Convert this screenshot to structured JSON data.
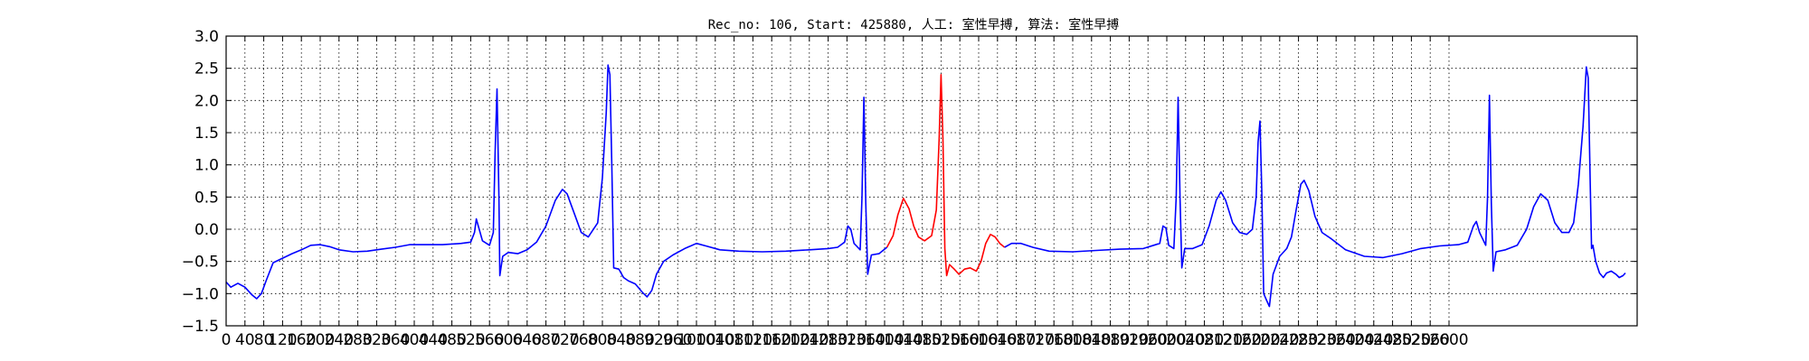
{
  "chart_data": {
    "type": "line",
    "title": "Rec_no: 106, Start: 425880, 人工: 室性早搏, 算法: 室性早搏",
    "xlabel": "",
    "ylabel": "",
    "xlim": [
      0,
      3000
    ],
    "ylim": [
      -1.5,
      3.0
    ],
    "grid": true,
    "x_ticks": [
      0,
      40,
      80,
      120,
      160,
      200,
      240,
      280,
      320,
      360,
      400,
      440,
      480,
      520,
      560,
      600,
      640,
      680,
      720,
      760,
      800,
      840,
      880,
      920,
      960,
      1000,
      1040,
      1080,
      1120,
      1160,
      1200,
      1240,
      1280,
      1320,
      1360,
      1400,
      1440,
      1480,
      1520,
      1560,
      1600,
      1640,
      1680,
      1720,
      1760,
      1800,
      1840,
      1880,
      1920,
      1960,
      2000,
      2040,
      2080,
      2120,
      2160,
      2200,
      2240,
      2280,
      2320,
      2360,
      2400,
      2440,
      2480,
      2520,
      2560,
      2600
    ],
    "y_ticks": [
      3.0,
      2.5,
      2.0,
      1.5,
      1.0,
      0.5,
      0.0,
      -0.5,
      -1.0,
      -1.5
    ],
    "y_tick_labels": [
      "3.0",
      "2.5",
      "2.0",
      "1.5",
      "1.0",
      "0.5",
      "0.0",
      "−0.5",
      "−1.0",
      "−1.5"
    ],
    "series": [
      {
        "color": "#0000ff",
        "points": [
          [
            0,
            -0.82
          ],
          [
            10,
            -0.9
          ],
          [
            25,
            -0.84
          ],
          [
            40,
            -0.9
          ],
          [
            55,
            -1.02
          ],
          [
            65,
            -1.08
          ],
          [
            75,
            -1.0
          ],
          [
            85,
            -0.8
          ],
          [
            100,
            -0.52
          ],
          [
            120,
            -0.45
          ],
          [
            140,
            -0.38
          ],
          [
            160,
            -0.32
          ],
          [
            180,
            -0.25
          ],
          [
            200,
            -0.24
          ],
          [
            220,
            -0.27
          ],
          [
            240,
            -0.32
          ],
          [
            270,
            -0.35
          ],
          [
            300,
            -0.34
          ],
          [
            330,
            -0.31
          ],
          [
            360,
            -0.28
          ],
          [
            390,
            -0.24
          ],
          [
            420,
            -0.24
          ],
          [
            460,
            -0.24
          ],
          [
            500,
            -0.22
          ],
          [
            520,
            -0.2
          ],
          [
            528,
            -0.05
          ],
          [
            532,
            0.16
          ],
          [
            538,
            0.0
          ],
          [
            545,
            -0.18
          ],
          [
            560,
            -0.25
          ],
          [
            568,
            -0.05
          ],
          [
            572,
            1.2
          ],
          [
            576,
            2.18
          ],
          [
            580,
            0.5
          ],
          [
            582,
            -0.72
          ],
          [
            588,
            -0.42
          ],
          [
            600,
            -0.36
          ],
          [
            620,
            -0.38
          ],
          [
            640,
            -0.32
          ],
          [
            660,
            -0.2
          ],
          [
            680,
            0.05
          ],
          [
            700,
            0.45
          ],
          [
            715,
            0.62
          ],
          [
            725,
            0.55
          ],
          [
            740,
            0.25
          ],
          [
            755,
            -0.05
          ],
          [
            770,
            -0.12
          ],
          [
            790,
            0.1
          ],
          [
            800,
            0.8
          ],
          [
            808,
            1.8
          ],
          [
            812,
            2.55
          ],
          [
            816,
            2.4
          ],
          [
            820,
            1.0
          ],
          [
            824,
            -0.6
          ],
          [
            835,
            -0.62
          ],
          [
            845,
            -0.75
          ],
          [
            855,
            -0.8
          ],
          [
            870,
            -0.85
          ],
          [
            885,
            -0.98
          ],
          [
            895,
            -1.05
          ],
          [
            905,
            -0.95
          ],
          [
            915,
            -0.7
          ],
          [
            930,
            -0.5
          ],
          [
            950,
            -0.4
          ],
          [
            975,
            -0.3
          ],
          [
            1000,
            -0.22
          ],
          [
            1020,
            -0.26
          ],
          [
            1050,
            -0.32
          ],
          [
            1090,
            -0.34
          ],
          [
            1140,
            -0.35
          ],
          [
            1190,
            -0.34
          ],
          [
            1240,
            -0.32
          ],
          [
            1280,
            -0.3
          ],
          [
            1300,
            -0.28
          ],
          [
            1315,
            -0.2
          ],
          [
            1322,
            0.05
          ],
          [
            1328,
            0.0
          ],
          [
            1335,
            -0.22
          ],
          [
            1348,
            -0.32
          ],
          [
            1352,
            0.5
          ],
          [
            1356,
            2.05
          ],
          [
            1360,
            0.4
          ],
          [
            1364,
            -0.7
          ],
          [
            1372,
            -0.4
          ],
          [
            1388,
            -0.38
          ],
          [
            1405,
            -0.28
          ]
        ]
      },
      {
        "color": "#ff0000",
        "points": [
          [
            1405,
            -0.28
          ],
          [
            1418,
            -0.1
          ],
          [
            1428,
            0.22
          ],
          [
            1440,
            0.48
          ],
          [
            1452,
            0.32
          ],
          [
            1462,
            0.05
          ],
          [
            1472,
            -0.12
          ],
          [
            1485,
            -0.18
          ],
          [
            1500,
            -0.1
          ],
          [
            1510,
            0.3
          ],
          [
            1516,
            1.4
          ],
          [
            1520,
            2.4
          ],
          [
            1524,
            1.4
          ],
          [
            1528,
            -0.3
          ],
          [
            1532,
            -0.72
          ],
          [
            1538,
            -0.55
          ],
          [
            1548,
            -0.62
          ],
          [
            1558,
            -0.7
          ],
          [
            1570,
            -0.62
          ],
          [
            1582,
            -0.6
          ],
          [
            1595,
            -0.65
          ],
          [
            1605,
            -0.5
          ],
          [
            1615,
            -0.22
          ],
          [
            1625,
            -0.08
          ],
          [
            1635,
            -0.12
          ],
          [
            1645,
            -0.22
          ],
          [
            1655,
            -0.28
          ]
        ]
      },
      {
        "color": "#0000ff",
        "points": [
          [
            1655,
            -0.28
          ],
          [
            1670,
            -0.22
          ],
          [
            1690,
            -0.22
          ],
          [
            1715,
            -0.28
          ],
          [
            1750,
            -0.34
          ],
          [
            1800,
            -0.35
          ],
          [
            1850,
            -0.33
          ],
          [
            1900,
            -0.31
          ],
          [
            1950,
            -0.3
          ],
          [
            1985,
            -0.22
          ],
          [
            1992,
            0.05
          ],
          [
            1998,
            0.02
          ],
          [
            2004,
            -0.25
          ],
          [
            2015,
            -0.3
          ],
          [
            2020,
            0.5
          ],
          [
            2024,
            2.05
          ],
          [
            2028,
            0.5
          ],
          [
            2032,
            -0.6
          ],
          [
            2038,
            -0.3
          ],
          [
            2055,
            -0.3
          ],
          [
            2075,
            -0.24
          ],
          [
            2090,
            0.05
          ],
          [
            2105,
            0.45
          ],
          [
            2115,
            0.58
          ],
          [
            2125,
            0.45
          ],
          [
            2140,
            0.1
          ],
          [
            2155,
            -0.05
          ],
          [
            2170,
            -0.08
          ],
          [
            2182,
            0.0
          ],
          [
            2190,
            0.5
          ],
          [
            2194,
            1.35
          ],
          [
            2198,
            1.68
          ],
          [
            2202,
            0.6
          ],
          [
            2206,
            -1.0
          ],
          [
            2212,
            -1.1
          ],
          [
            2218,
            -1.2
          ],
          [
            2226,
            -0.7
          ],
          [
            2240,
            -0.42
          ],
          [
            2255,
            -0.3
          ],
          [
            2265,
            -0.12
          ],
          [
            2275,
            0.3
          ],
          [
            2285,
            0.7
          ],
          [
            2292,
            0.76
          ],
          [
            2302,
            0.6
          ],
          [
            2315,
            0.2
          ],
          [
            2330,
            -0.05
          ],
          [
            2350,
            -0.15
          ],
          [
            2380,
            -0.32
          ],
          [
            2420,
            -0.42
          ],
          [
            2460,
            -0.44
          ],
          [
            2500,
            -0.38
          ],
          [
            2540,
            -0.3
          ],
          [
            2580,
            -0.26
          ],
          [
            2620,
            -0.24
          ],
          [
            2640,
            -0.2
          ],
          [
            2652,
            0.05
          ],
          [
            2658,
            0.12
          ],
          [
            2665,
            -0.05
          ],
          [
            2678,
            -0.25
          ],
          [
            2682,
            0.5
          ],
          [
            2686,
            2.08
          ],
          [
            2690,
            0.4
          ],
          [
            2694,
            -0.65
          ],
          [
            2700,
            -0.35
          ],
          [
            2720,
            -0.32
          ],
          [
            2745,
            -0.25
          ],
          [
            2765,
            0.0
          ],
          [
            2780,
            0.35
          ],
          [
            2795,
            0.55
          ],
          [
            2810,
            0.45
          ],
          [
            2825,
            0.1
          ],
          [
            2840,
            -0.05
          ],
          [
            2855,
            -0.05
          ],
          [
            2865,
            0.1
          ],
          [
            2875,
            0.7
          ],
          [
            2885,
            1.6
          ],
          [
            2892,
            2.52
          ],
          [
            2896,
            2.35
          ],
          [
            2900,
            0.8
          ],
          [
            2903,
            -0.3
          ],
          [
            2906,
            -0.25
          ],
          [
            2912,
            -0.5
          ],
          [
            2920,
            -0.68
          ],
          [
            2928,
            -0.75
          ],
          [
            2935,
            -0.68
          ],
          [
            2945,
            -0.65
          ],
          [
            2955,
            -0.7
          ],
          [
            2962,
            -0.75
          ],
          [
            2970,
            -0.72
          ],
          [
            2975,
            -0.68
          ]
        ]
      }
    ]
  }
}
